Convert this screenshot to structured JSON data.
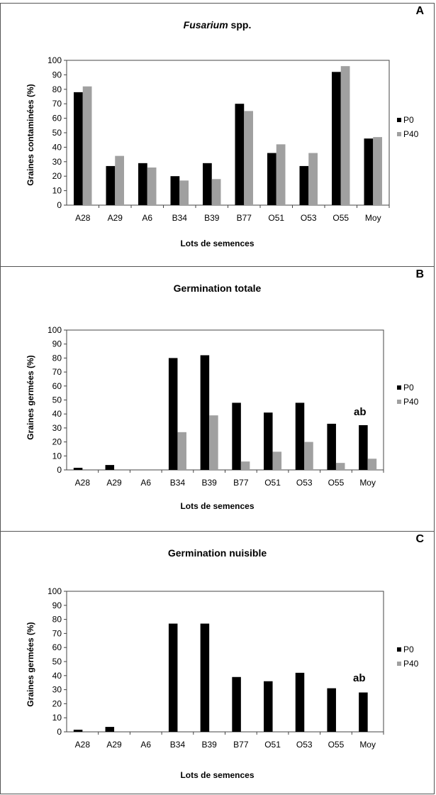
{
  "figure": {
    "colors": {
      "P0": "#000000",
      "P40": "#a0a0a0"
    }
  },
  "chart_data": [
    {
      "panel": "A",
      "type": "bar",
      "title_italic": "Fusarium",
      "title_rest": " spp.",
      "xlabel": "Lots de semences",
      "ylabel": "Graines contaminées (%)",
      "ylim": [
        0,
        100
      ],
      "yticks": [
        "0",
        "10",
        "20",
        "30",
        "40",
        "50",
        "60",
        "70",
        "80",
        "90",
        "100"
      ],
      "categories": [
        "A28",
        "A29",
        "A6",
        "B34",
        "B39",
        "B77",
        "O51",
        "O53",
        "O55",
        "Moy"
      ],
      "series": [
        {
          "name": "P0",
          "values": [
            78,
            27,
            29,
            20,
            29,
            70,
            36,
            27,
            92,
            46
          ]
        },
        {
          "name": "P40",
          "values": [
            82,
            34,
            26,
            17,
            18,
            65,
            42,
            36,
            96,
            47
          ]
        }
      ],
      "annotation": "",
      "legend_position": "right"
    },
    {
      "panel": "B",
      "type": "bar",
      "title": "Germination totale",
      "xlabel": "Lots de semences",
      "ylabel": "Graines germées (%)",
      "ylim": [
        0,
        100
      ],
      "yticks": [
        "0",
        "10",
        "20",
        "30",
        "40",
        "50",
        "60",
        "70",
        "80",
        "90",
        "100"
      ],
      "categories": [
        "A28",
        "A29",
        "A6",
        "B34",
        "B39",
        "B77",
        "O51",
        "O53",
        "O55",
        "Moy"
      ],
      "series": [
        {
          "name": "P0",
          "values": [
            1.5,
            3.5,
            0,
            80,
            82,
            48,
            41,
            48,
            33,
            32
          ]
        },
        {
          "name": "P40",
          "values": [
            0,
            0,
            0,
            27,
            39,
            6,
            13,
            20,
            5,
            8
          ]
        }
      ],
      "annotation": "ab",
      "legend_position": "right"
    },
    {
      "panel": "C",
      "type": "bar",
      "title": "Germination nuisible",
      "xlabel": "Lots de semences",
      "ylabel": "Graines germées (%)",
      "ylim": [
        0,
        100
      ],
      "yticks": [
        "0",
        "10",
        "20",
        "30",
        "40",
        "50",
        "60",
        "70",
        "80",
        "90",
        "100"
      ],
      "categories": [
        "A28",
        "A29",
        "A6",
        "B34",
        "B39",
        "B77",
        "O51",
        "O53",
        "O55",
        "Moy"
      ],
      "series": [
        {
          "name": "P0",
          "values": [
            1.5,
            3.5,
            0,
            77,
            77,
            39,
            36,
            42,
            31,
            28
          ]
        },
        {
          "name": "P40",
          "values": [
            0,
            0,
            0,
            0,
            0,
            0,
            0,
            0,
            0,
            0
          ]
        }
      ],
      "annotation": "ab",
      "legend_position": "right"
    }
  ]
}
